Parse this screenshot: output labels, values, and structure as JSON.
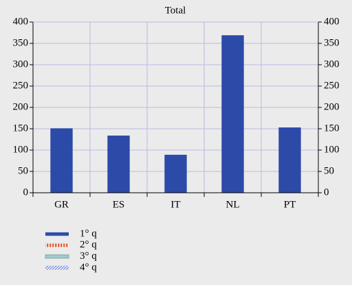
{
  "chart_data": {
    "type": "bar",
    "title": "Total",
    "categories": [
      "GR",
      "ES",
      "IT",
      "NL",
      "PT"
    ],
    "series": [
      {
        "name": "1° q",
        "color": "#2c4aa8",
        "values": [
          151,
          134,
          89,
          369,
          153
        ]
      },
      {
        "name": "2° q",
        "color": "#e0603c",
        "values": [
          null,
          null,
          null,
          null,
          null
        ]
      },
      {
        "name": "3° q",
        "color": "#9ecaca",
        "values": [
          null,
          null,
          null,
          null,
          null
        ]
      },
      {
        "name": "4° q",
        "color": "#7f8ee0",
        "values": [
          null,
          null,
          null,
          null,
          null
        ]
      }
    ],
    "ylim": [
      0,
      400
    ],
    "yticks": [
      0,
      50,
      100,
      150,
      200,
      250,
      300,
      350,
      400
    ],
    "y2lim": [
      0,
      400
    ],
    "y2ticks": [
      0,
      50,
      100,
      150,
      200,
      250,
      300,
      350,
      400
    ],
    "grid": true
  }
}
